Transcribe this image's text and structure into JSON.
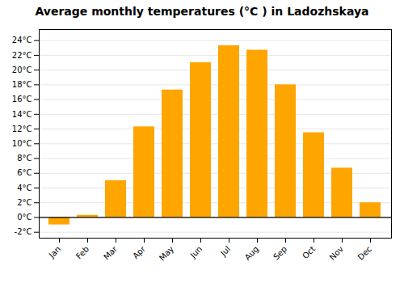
{
  "chart_data": {
    "type": "bar",
    "title": "Average monthly temperatures (°C ) in Ladozhskaya",
    "categories": [
      "Jan",
      "Feb",
      "Mar",
      "Apr",
      "May",
      "Jun",
      "Jul",
      "Aug",
      "Sep",
      "Oct",
      "Nov",
      "Dec"
    ],
    "values": [
      -1.0,
      0.3,
      5.0,
      12.3,
      17.3,
      21.0,
      23.3,
      22.7,
      18.0,
      11.5,
      6.7,
      2.0
    ],
    "color": "#FFA500",
    "ylim": [
      -2.8,
      25.5
    ],
    "yticks": [
      {
        "value": -2,
        "label": "-2°C"
      },
      {
        "value": 0,
        "label": "0°C"
      },
      {
        "value": 2,
        "label": "2°C"
      },
      {
        "value": 4,
        "label": "4°C"
      },
      {
        "value": 6,
        "label": "6°C"
      },
      {
        "value": 8,
        "label": "8°C"
      },
      {
        "value": 10,
        "label": "10°C"
      },
      {
        "value": 12,
        "label": "12°C"
      },
      {
        "value": 14,
        "label": "14°C"
      },
      {
        "value": 16,
        "label": "16°C"
      },
      {
        "value": 18,
        "label": "18°C"
      },
      {
        "value": 20,
        "label": "20°C"
      },
      {
        "value": 22,
        "label": "22°C"
      },
      {
        "value": 24,
        "label": "24°C"
      }
    ],
    "grid": true
  }
}
